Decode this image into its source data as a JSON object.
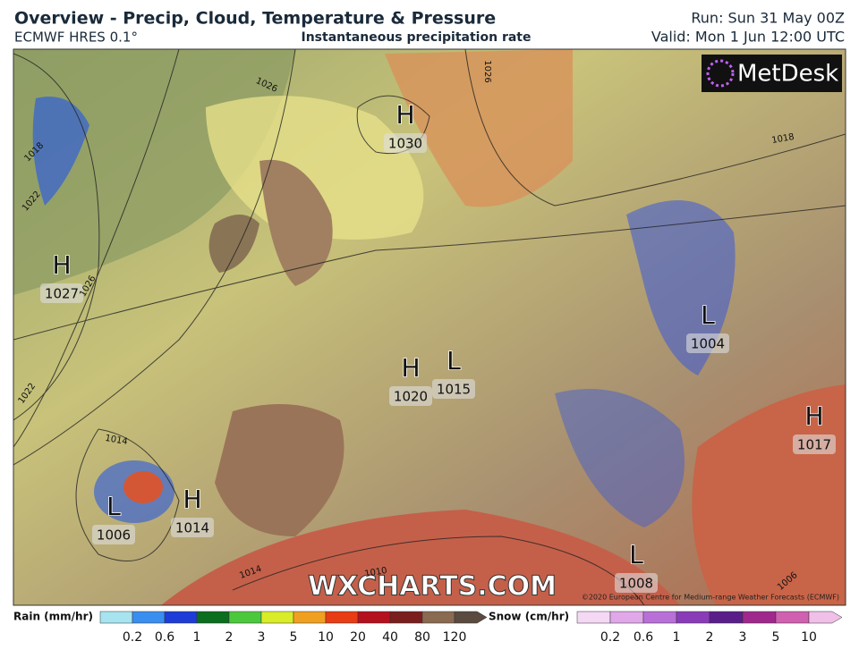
{
  "header": {
    "title": "Overview - Precip, Cloud, Temperature & Pressure",
    "model": "ECMWF HRES 0.1°",
    "field": "Instantaneous precipitation rate",
    "run": "Run: Sun 31 May 00Z",
    "valid": "Valid: Mon 1 Jun 12:00 UTC"
  },
  "map": {
    "logo": "MetDesk",
    "watermark": "WXCHARTS.COM",
    "copyright": "©2020 European Centre for Medium-range Weather Forecasts (ECMWF)",
    "pressure_centers": [
      {
        "label": "H",
        "pressure": "1030"
      },
      {
        "label": "H",
        "pressure": "1027"
      },
      {
        "label": "H",
        "pressure": "1020"
      },
      {
        "label": "L",
        "pressure": "1015"
      },
      {
        "label": "L",
        "pressure": "1004"
      },
      {
        "label": "H",
        "pressure": "1017"
      },
      {
        "label": "L",
        "pressure": "1006"
      },
      {
        "label": "H",
        "pressure": "1014"
      },
      {
        "label": "L",
        "pressure": "1008"
      }
    ],
    "isobar_labels": [
      "1026",
      "1026",
      "1018",
      "1018",
      "1022",
      "1026",
      "1022",
      "1014",
      "1014",
      "1010",
      "1006"
    ]
  },
  "legend": {
    "rain": {
      "title": "Rain (mm/hr)",
      "ticks": [
        "0.2",
        "0.6",
        "1",
        "2",
        "3",
        "5",
        "10",
        "20",
        "40",
        "80",
        "120"
      ],
      "colors": [
        "#a8e4f0",
        "#3a8ef0",
        "#1e3cd8",
        "#0a6e1e",
        "#4cc83c",
        "#d8ec28",
        "#f0a020",
        "#e83c14",
        "#b4101e",
        "#7a1e1e",
        "#8a6a50",
        "#5a4a40"
      ]
    },
    "snow": {
      "title": "Snow (cm/hr)",
      "ticks": [
        "0.2",
        "0.6",
        "1",
        "2",
        "3",
        "5",
        "10"
      ],
      "colors": [
        "#f4d8f4",
        "#e0a8e8",
        "#b870d8",
        "#8a3cb8",
        "#5a1e8a",
        "#a0288c",
        "#d060b0",
        "#f0c0e8"
      ]
    }
  }
}
